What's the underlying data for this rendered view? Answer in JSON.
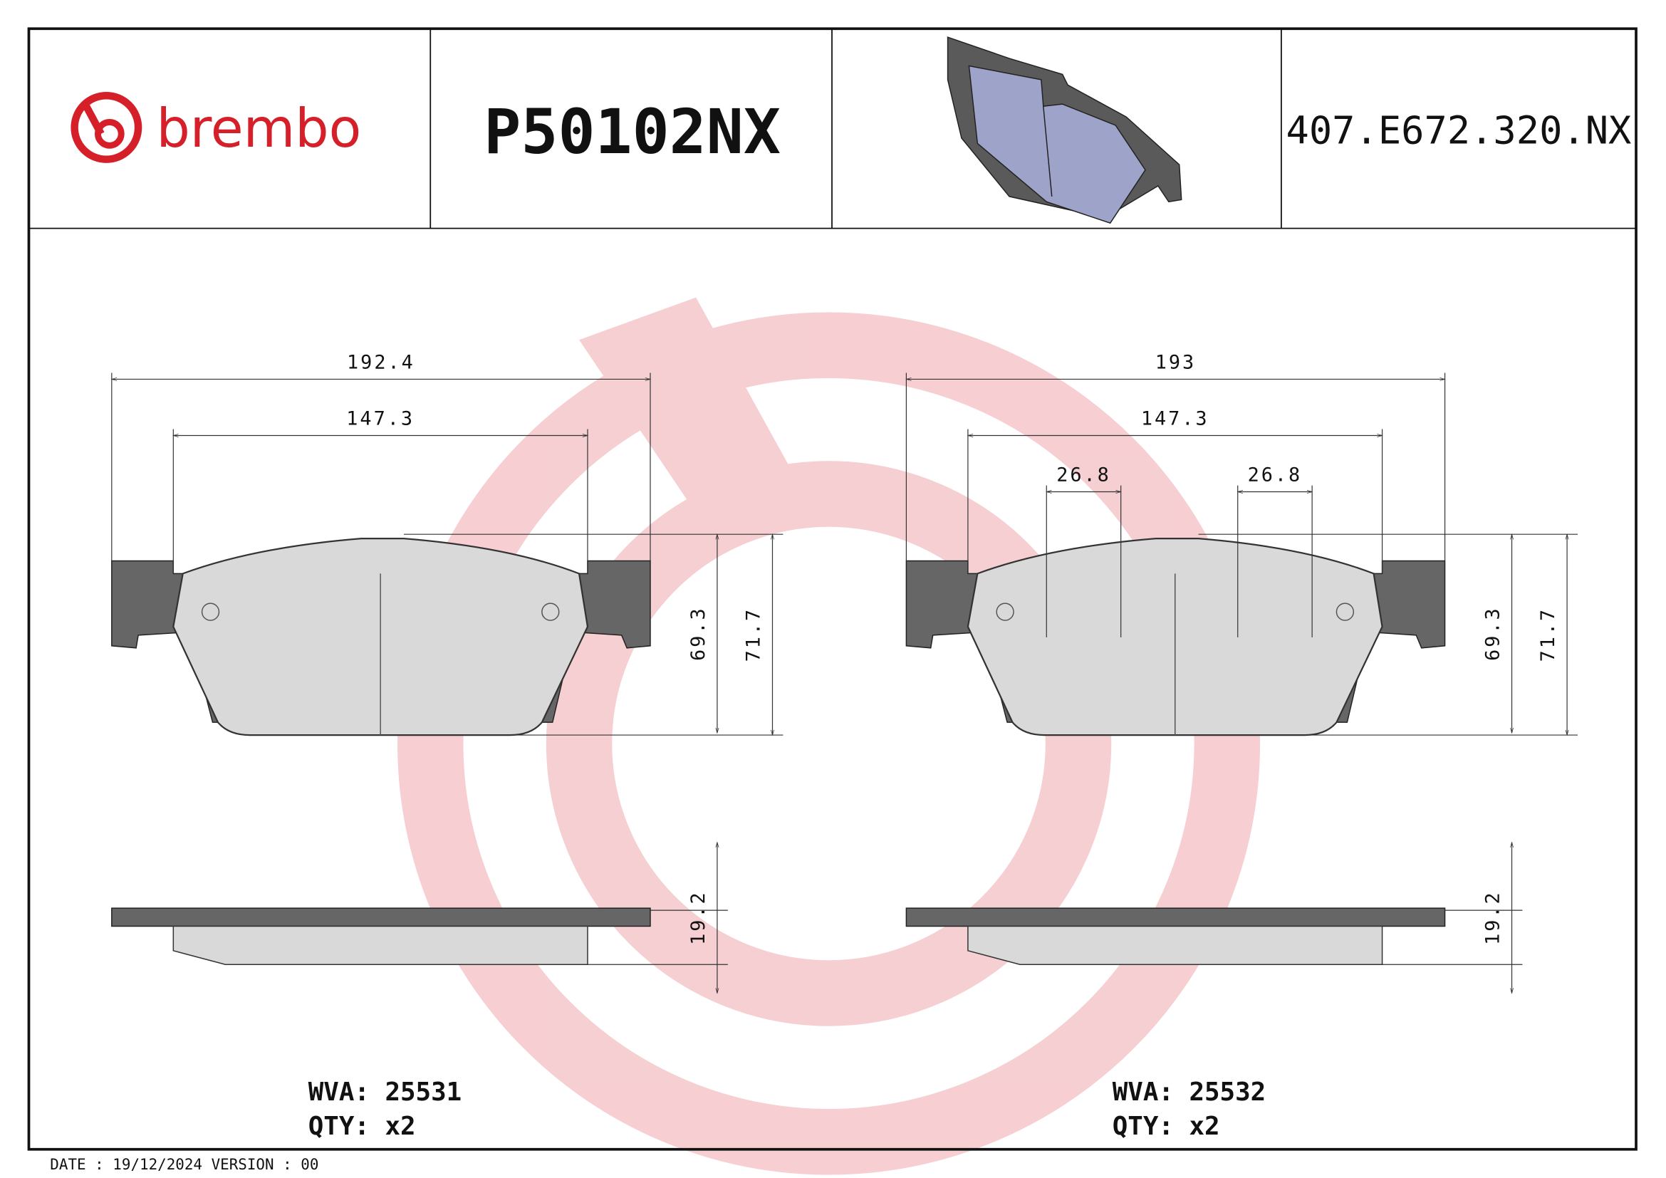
{
  "header": {
    "brand": "brembo",
    "part_number": "P50102NX",
    "reference": "407.E672.320.NX"
  },
  "drawings": [
    {
      "overall_width": "192.4",
      "inner_width": "147.3",
      "height": "69.3",
      "total_height": "71.7",
      "thickness": "19.2",
      "wva_label": "WVA:",
      "wva": "25531",
      "qty_label": "QTY:",
      "qty": "x2"
    },
    {
      "overall_width": "193",
      "inner_width": "147.3",
      "sensor_widths": [
        "26.8",
        "26.8"
      ],
      "height": "69.3",
      "total_height": "71.7",
      "thickness": "19.2",
      "wva_label": "WVA:",
      "wva": "25532",
      "qty_label": "QTY:",
      "qty": "x2"
    }
  ],
  "footer": {
    "date_label": "DATE :",
    "date": "19/12/2024",
    "version_label": "VERSION :",
    "version": "00"
  }
}
